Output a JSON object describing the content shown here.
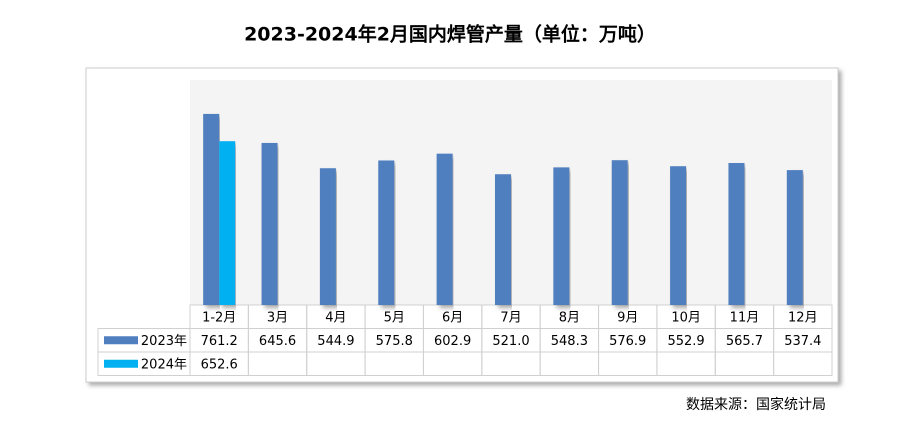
{
  "chart_data": {
    "type": "bar",
    "title": "2023-2024年2月国内焊管产量（单位：万吨）",
    "source": "数据来源：国家统计局",
    "categories": [
      "1-2月",
      "3月",
      "4月",
      "5月",
      "6月",
      "7月",
      "8月",
      "9月",
      "10月",
      "11月",
      "12月"
    ],
    "series": [
      {
        "name": "2023年",
        "color": "#4f7fbf",
        "values": [
          761.2,
          645.6,
          544.9,
          575.8,
          602.9,
          521.0,
          548.3,
          576.9,
          552.9,
          565.7,
          537.4
        ],
        "value_labels": [
          "761.2",
          "645.6",
          "544.9",
          "575.8",
          "602.9",
          "521.0",
          "548.3",
          "576.9",
          "552.9",
          "565.7",
          "537.4"
        ]
      },
      {
        "name": "2024年",
        "color": "#00b0f0",
        "values": [
          652.6,
          null,
          null,
          null,
          null,
          null,
          null,
          null,
          null,
          null,
          null
        ],
        "value_labels": [
          "652.6",
          null,
          null,
          null,
          null,
          null,
          null,
          null,
          null,
          null,
          null
        ]
      }
    ]
  }
}
